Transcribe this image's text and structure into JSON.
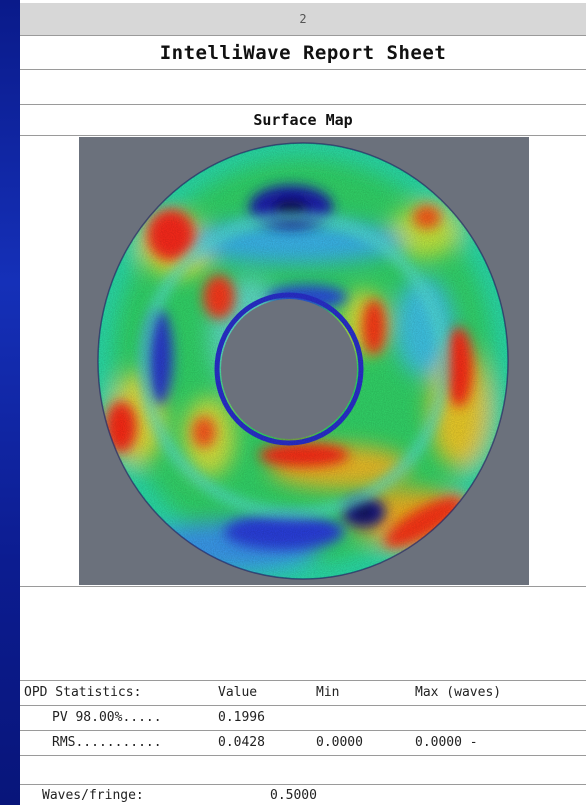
{
  "page_number": "2",
  "report_title": "IntelliWave Report Sheet",
  "section_title": "Surface Map",
  "colors": {
    "background_blue": "#1530b8",
    "map_background": "#6b717c",
    "grid_line": "#9a9a9a"
  },
  "opd_table": {
    "headers": [
      "OPD Statistics:",
      "Value",
      "Min",
      "Max (waves)"
    ],
    "rows": [
      {
        "label": "PV 98.00%.....",
        "value": "0.1996",
        "min": "",
        "max": ""
      },
      {
        "label": "RMS...........",
        "value": "0.0428",
        "min": "0.0000",
        "max": "0.0000 -"
      }
    ]
  },
  "waves_fringe": {
    "label": "Waves/fringe:",
    "value": "0.5000"
  }
}
